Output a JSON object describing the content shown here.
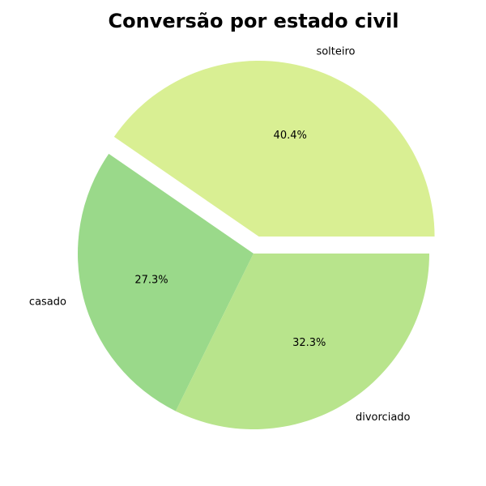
{
  "chart_data": {
    "type": "pie",
    "title": "Conversão por estado civil",
    "categories": [
      "solteiro",
      "casado",
      "divorciado"
    ],
    "values": [
      40.4,
      27.3,
      32.3
    ],
    "value_labels": [
      "40.4%",
      "27.3%",
      "32.3%"
    ],
    "colors": [
      "#d9ef93",
      "#9ad98a",
      "#b8e48c"
    ],
    "exploded": [
      "solteiro"
    ],
    "legend": "none"
  }
}
